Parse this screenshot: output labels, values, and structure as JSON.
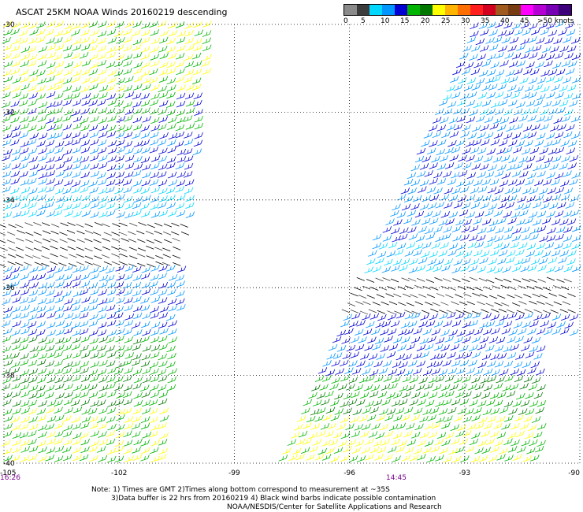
{
  "title": "ASCAT 25KM NOAA Winds 20160219 descending",
  "legend": {
    "colors": [
      "#8a8a8a",
      "#3c3c3c",
      "#00d8ff",
      "#0096ff",
      "#0000d2",
      "#00b400",
      "#007800",
      "#ffff00",
      "#ffb400",
      "#ff6e00",
      "#ff1e1e",
      "#d2001e",
      "#a05a1e",
      "#783c14",
      "#ff00ff",
      "#b400d2",
      "#7800b4",
      "#3c0078"
    ],
    "labels": [
      "0",
      "5",
      "10",
      "15",
      "20",
      "25",
      "30",
      "35",
      "40",
      "45",
      ">50 knots"
    ]
  },
  "chart_data": {
    "type": "map",
    "x_ticks": [
      "-105",
      "-102",
      "-99",
      "-96",
      "-93",
      "-90"
    ],
    "y_ticks": [
      "-30",
      "-32",
      "-34",
      "-36",
      "-38",
      "-40"
    ],
    "xlim": [
      -105,
      -90
    ],
    "ylim": [
      -40,
      -30
    ],
    "pass_times": [
      "16:26",
      "14:45"
    ],
    "grid": "dotted"
  },
  "notes": {
    "line1": "Note: 1) Times are GMT 2)Times along bottom correspond to measurement at ~35S",
    "line2": "3)Data buffer is 22 hrs from 20160219 4) Black wind barbs indicate possible contamination",
    "line3": "NOAA/NESDIS/Center for Satellite Applications and Research"
  }
}
